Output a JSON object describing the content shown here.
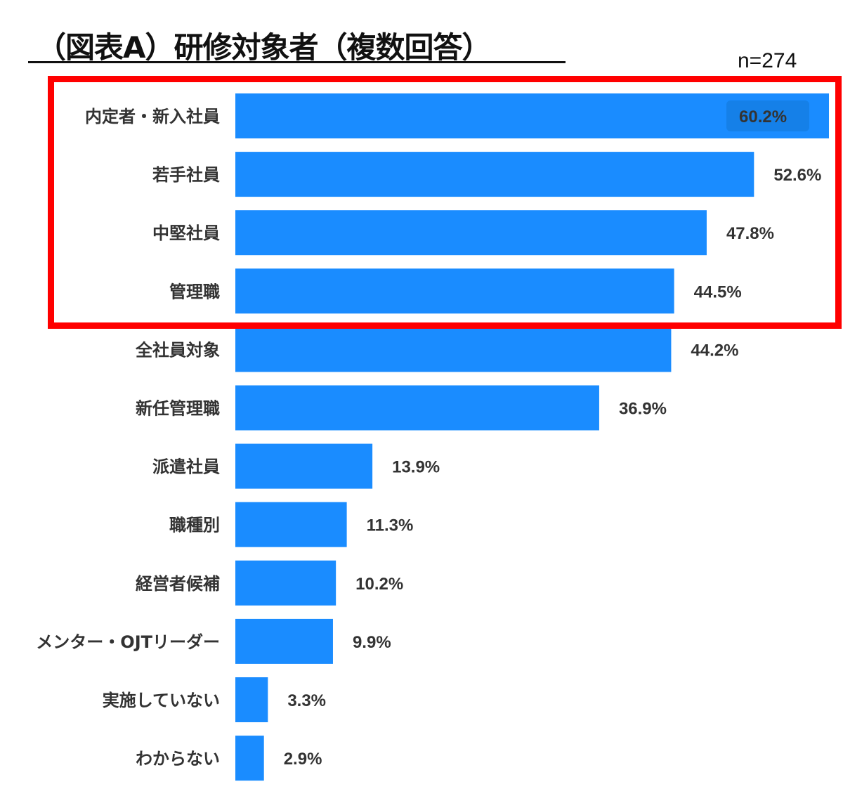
{
  "chart_data": {
    "type": "bar",
    "orientation": "horizontal",
    "title": "（図表A）研修対象者（複数回答）",
    "sample_size": "n=274",
    "categories": [
      "内定者・新入社員",
      "若手社員",
      "中堅社員",
      "管理職",
      "全社員対象",
      "新任管理職",
      "派遣社員",
      "職種別",
      "経営者候補",
      "メンター・OJTリーダー",
      "実施していない",
      "わからない"
    ],
    "values": [
      60.2,
      52.6,
      47.8,
      44.5,
      44.2,
      36.9,
      13.9,
      11.3,
      10.2,
      9.9,
      3.3,
      2.9
    ],
    "value_labels": [
      "60.2%",
      "52.6%",
      "47.8%",
      "44.5%",
      "44.2%",
      "36.9%",
      "13.9%",
      "11.3%",
      "10.2%",
      "9.9%",
      "3.3%",
      "2.9%"
    ],
    "unit": "%",
    "xlim": [
      0,
      60.2
    ],
    "grid": false,
    "highlighted_categories": [
      "内定者・新入社員",
      "若手社員",
      "中堅社員",
      "管理職"
    ],
    "colors": {
      "bar": "#1a8cff",
      "highlight_border": "#ff0000"
    }
  }
}
